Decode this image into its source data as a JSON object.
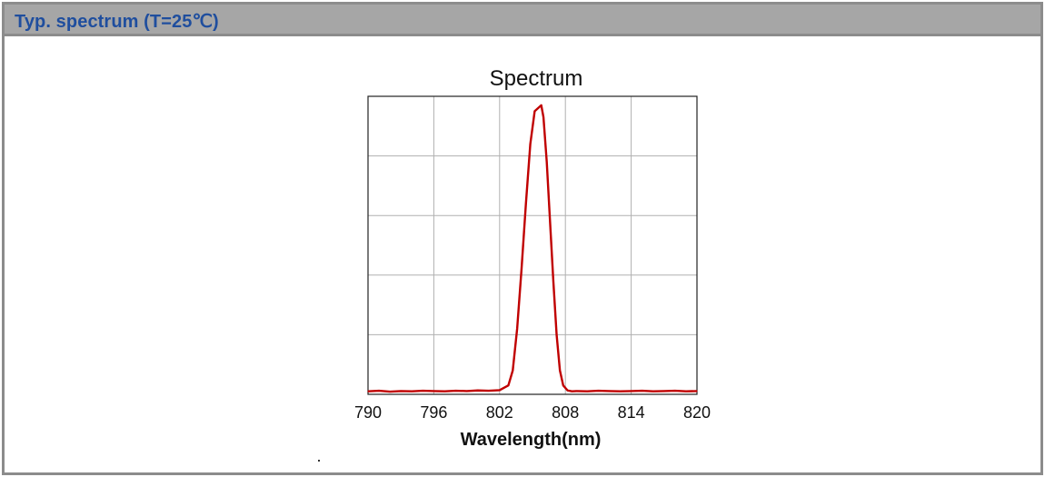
{
  "header": {
    "title": "Typ. spectrum (T=25℃)"
  },
  "colors": {
    "header_text": "#1f4e9e",
    "header_bg": "#a6a6a6",
    "line": "#c00000",
    "grid": "#b0b0b0"
  },
  "chart_data": {
    "type": "line",
    "title": "Spectrum",
    "xlabel": "Wavelength(nm)",
    "ylabel": "",
    "xlim": [
      790,
      820
    ],
    "ylim": [
      0,
      1
    ],
    "xticks": [
      "790",
      "796",
      "802",
      "808",
      "814",
      "820"
    ],
    "grid": true,
    "series": [
      {
        "x": [
          790,
          791,
          792,
          793,
          794,
          795,
          796,
          797,
          798,
          799,
          800,
          801,
          802,
          802.8,
          803.2,
          803.6,
          804.0,
          804.4,
          804.8,
          805.2,
          805.5,
          805.8,
          806.0,
          806.3,
          806.6,
          806.9,
          807.2,
          807.5,
          807.8,
          808.2,
          808.6,
          809,
          810,
          811,
          812,
          813,
          814,
          815,
          816,
          817,
          818,
          819,
          820
        ],
        "y": [
          0.01,
          0.012,
          0.009,
          0.011,
          0.01,
          0.012,
          0.011,
          0.01,
          0.012,
          0.011,
          0.013,
          0.012,
          0.014,
          0.03,
          0.08,
          0.22,
          0.42,
          0.64,
          0.84,
          0.95,
          0.96,
          0.97,
          0.93,
          0.78,
          0.58,
          0.38,
          0.2,
          0.08,
          0.03,
          0.013,
          0.01,
          0.011,
          0.01,
          0.012,
          0.011,
          0.01,
          0.011,
          0.012,
          0.01,
          0.011,
          0.012,
          0.01,
          0.011
        ]
      }
    ]
  }
}
